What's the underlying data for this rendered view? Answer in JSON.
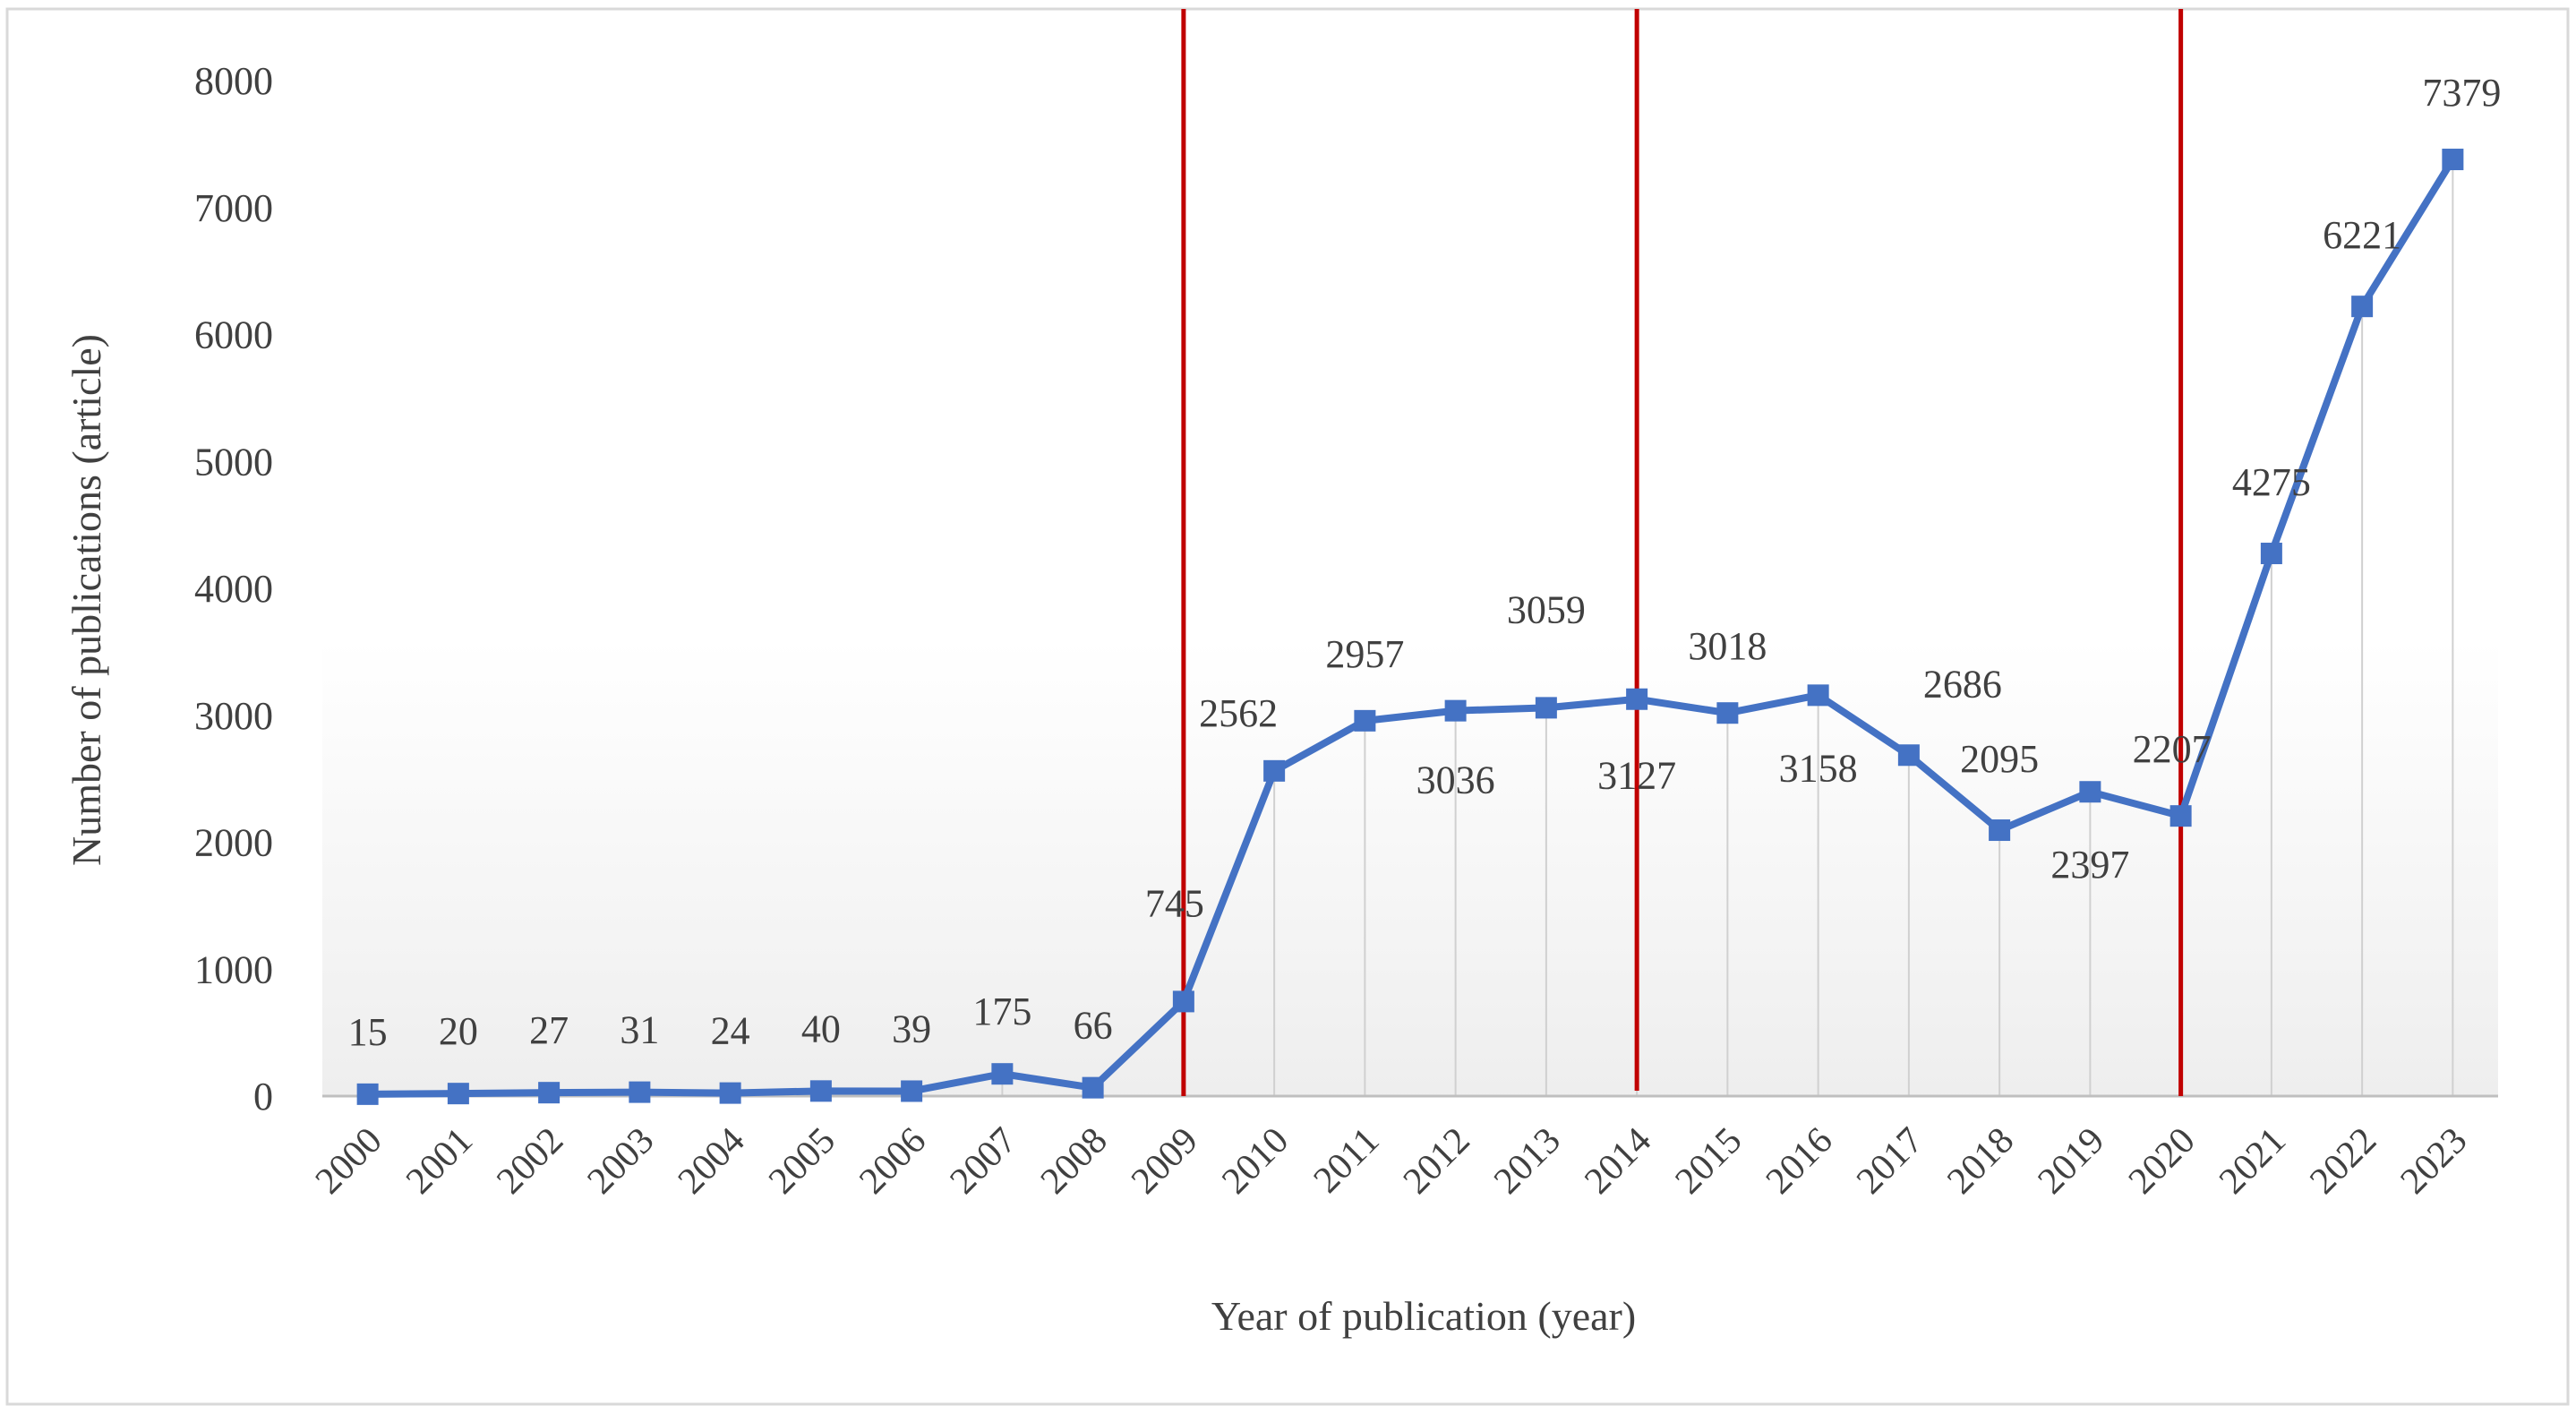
{
  "chart_data": {
    "type": "line",
    "xlabel": "Year of publication (year)",
    "ylabel": "Number of publications (article)",
    "ylim": [
      0,
      8000
    ],
    "yticks": [
      0,
      1000,
      2000,
      3000,
      4000,
      5000,
      6000,
      7000,
      8000
    ],
    "grid": "vertical drop lines",
    "legend": "none",
    "series_color": "#4472C4",
    "marker_line_color": "#C00000",
    "categories": [
      "2000",
      "2001",
      "2002",
      "2003",
      "2004",
      "2005",
      "2006",
      "2007",
      "2008",
      "2009",
      "2010",
      "2011",
      "2012",
      "2013",
      "2014",
      "2015",
      "2016",
      "2017",
      "2018",
      "2019",
      "2020",
      "2021",
      "2022",
      "2023"
    ],
    "series": [
      {
        "values": [
          15,
          20,
          27,
          31,
          24,
          40,
          39,
          175,
          66,
          745,
          2562,
          2957,
          3036,
          3059,
          3127,
          3018,
          3158,
          2686,
          2095,
          2397,
          2207,
          4275,
          6221,
          7379
        ],
        "data_labels": [
          "15",
          "20",
          "27",
          "31",
          "24",
          "40",
          "39",
          "175",
          "66",
          "745",
          "2562",
          "2957",
          "3036",
          "3059",
          "3127",
          "3018",
          "3158",
          "2686",
          "2095",
          "2397",
          "2207",
          "4275",
          "6221",
          "7379"
        ]
      }
    ],
    "vertical_markers": [
      "2009",
      "2014",
      "2020"
    ]
  }
}
